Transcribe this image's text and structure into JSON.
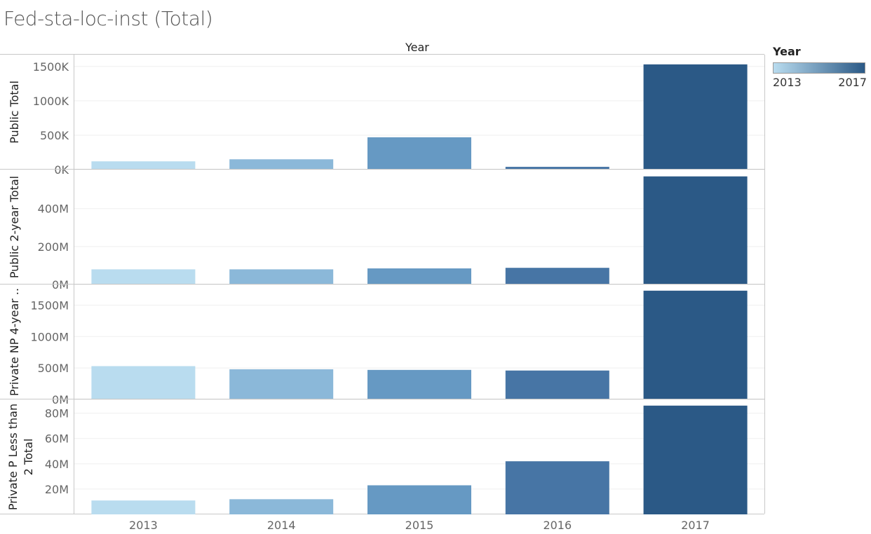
{
  "title": "Fed-sta-loc-inst (Total)",
  "column_header": "Year",
  "legend": {
    "title": "Year",
    "min_label": "2013",
    "max_label": "2017",
    "color_start": "#b9dcef",
    "color_end": "#2b5986"
  },
  "chart_data": {
    "type": "bar",
    "categories": [
      "2013",
      "2014",
      "2015",
      "2016",
      "2017"
    ],
    "colors": [
      "#b9dcef",
      "#8bb8d9",
      "#6699c3",
      "#4775a5",
      "#2b5986"
    ],
    "panels": [
      {
        "name": "Public Total",
        "label_lines": [
          "Public Total"
        ],
        "values": [
          120,
          150,
          470,
          40,
          1530
        ],
        "ylim": [
          0,
          1600
        ],
        "ticks": [
          0,
          500,
          1000,
          1500
        ],
        "tick_labels": [
          "0K",
          "500K",
          "1000K",
          "1500K"
        ],
        "unit": "K"
      },
      {
        "name": "Public 2-year Total",
        "label_lines": [
          "Public 2-year Total"
        ],
        "values": [
          80,
          80,
          85,
          88,
          570
        ],
        "ylim": [
          0,
          580
        ],
        "ticks": [
          0,
          200,
          400
        ],
        "tick_labels": [
          "0M",
          "200M",
          "400M"
        ],
        "unit": "M"
      },
      {
        "name": "Private NP 4-year ..",
        "label_lines": [
          "Private NP 4-year .."
        ],
        "values": [
          530,
          480,
          470,
          460,
          1730
        ],
        "ylim": [
          0,
          1750
        ],
        "ticks": [
          0,
          500,
          1000,
          1500
        ],
        "tick_labels": [
          "0M",
          "500M",
          "1000M",
          "1500M"
        ],
        "unit": "M"
      },
      {
        "name": "Private P Less than 2 Total",
        "label_lines": [
          "Private P Less than",
          "2 Total"
        ],
        "values": [
          11,
          12,
          23,
          42,
          86
        ],
        "ylim": [
          0,
          87
        ],
        "ticks": [
          20,
          40,
          60,
          80
        ],
        "tick_labels": [
          "20M",
          "40M",
          "60M",
          "80M"
        ],
        "unit": "M"
      }
    ]
  }
}
